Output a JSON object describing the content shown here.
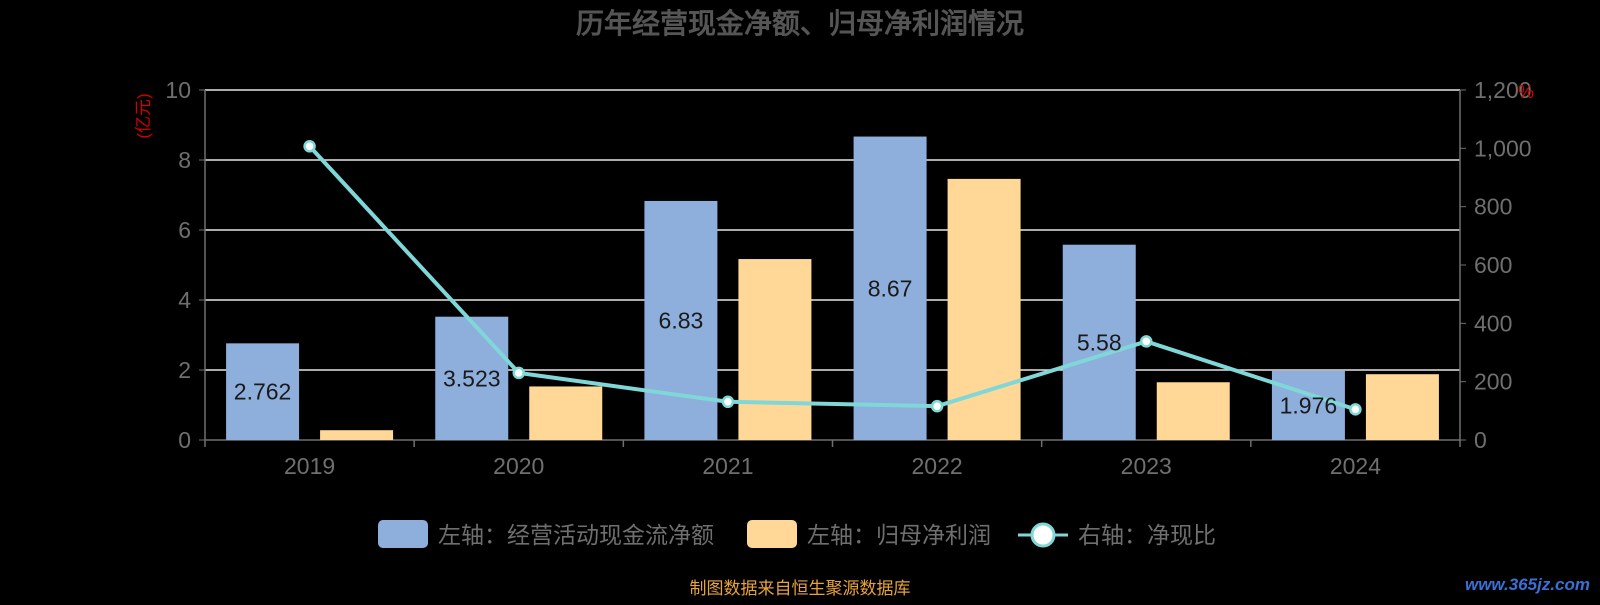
{
  "chart_data": {
    "type": "bar",
    "title": "历年经营现金净额、归母净利润情况",
    "categories": [
      "2019",
      "2020",
      "2021",
      "2022",
      "2023",
      "2024"
    ],
    "series": [
      {
        "name": "左轴：经营活动现金流净额",
        "type": "bar",
        "axis": "left",
        "values": [
          2.762,
          3.523,
          6.83,
          8.67,
          5.58,
          1.976
        ],
        "data_labels": [
          "2.762",
          "3.523",
          "6.83",
          "8.67",
          "5.58",
          "1.976"
        ],
        "color": "#8eaedc"
      },
      {
        "name": "左轴：归母净利润",
        "type": "bar",
        "axis": "left",
        "values": [
          0.28,
          1.53,
          5.17,
          7.46,
          1.65,
          1.88
        ],
        "color": "#ffd897"
      },
      {
        "name": "右轴：净现比",
        "type": "line",
        "axis": "right",
        "values": [
          1007,
          230,
          131,
          116,
          338,
          105
        ],
        "color": "#7fd7d7"
      }
    ],
    "y_left": {
      "label": "(亿元)",
      "min": 0,
      "max": 10,
      "ticks": [
        "0",
        "2",
        "4",
        "6",
        "8",
        "10"
      ]
    },
    "y_right": {
      "label": "%",
      "min": 0,
      "max": 1200,
      "ticks": [
        "0",
        "200",
        "400",
        "600",
        "800",
        "1,000",
        "1,200"
      ]
    },
    "grid": true,
    "legend_position": "bottom",
    "source_note": "制图数据来自恒生聚源数据库",
    "watermark": "www.365jz.com",
    "colors": {
      "background": "#000000",
      "axis_text": "#6f6f6f",
      "grid": "#e6e6e6",
      "title": "#555555",
      "axis_unit": "#d40000",
      "source": "#e8a33a",
      "watermark": "#3b6fd4"
    }
  }
}
